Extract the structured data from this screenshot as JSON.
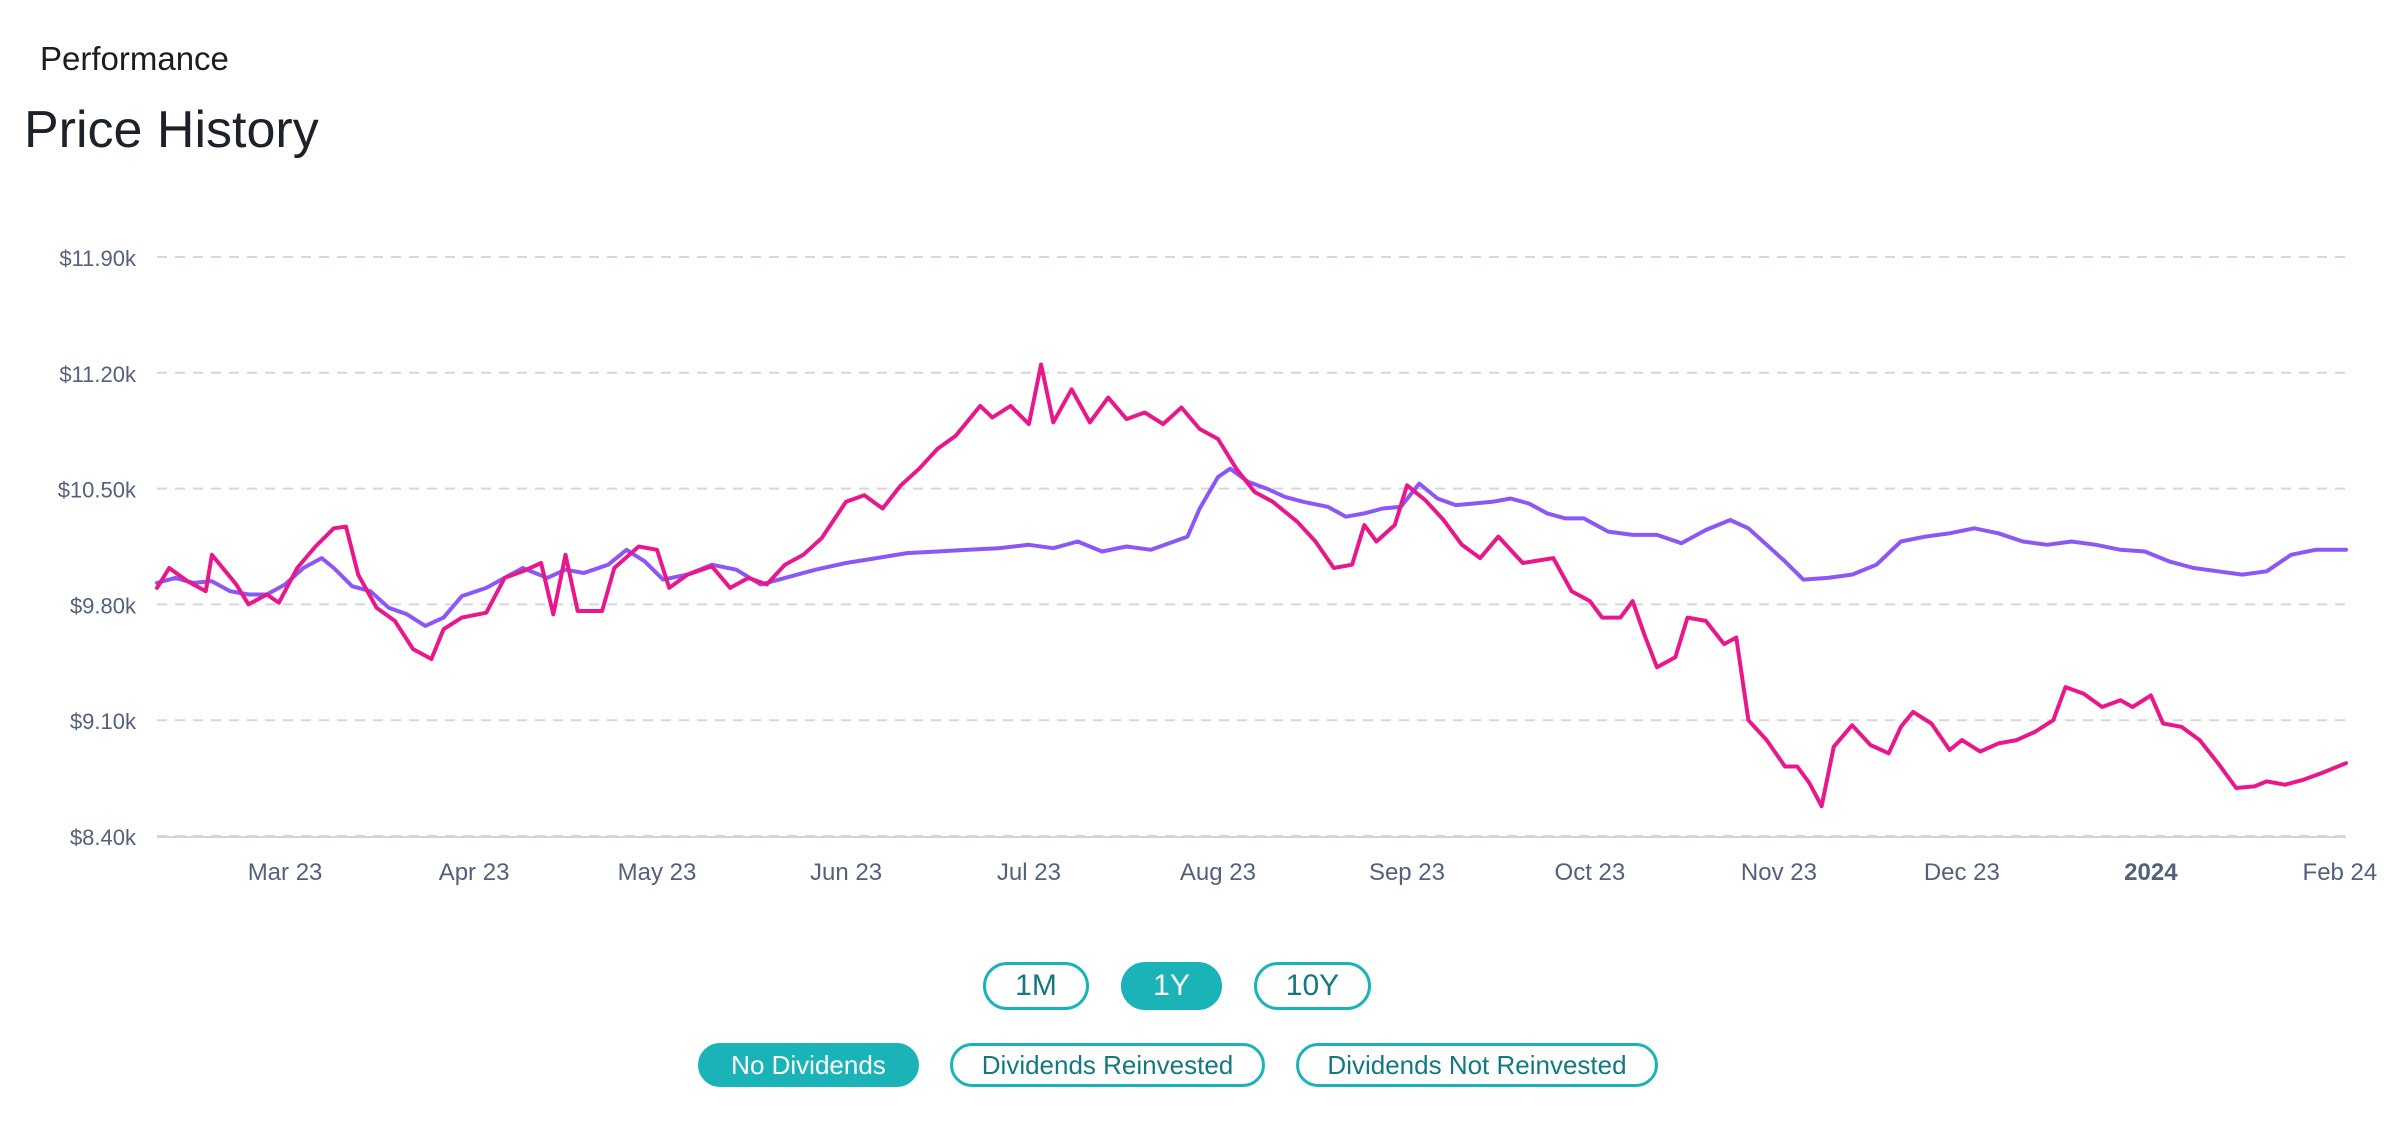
{
  "header": {
    "section_label": "Performance",
    "title": "Price History"
  },
  "range_buttons": [
    {
      "label": "1M",
      "active": false
    },
    {
      "label": "1Y",
      "active": true
    },
    {
      "label": "10Y",
      "active": false
    }
  ],
  "dividend_buttons": [
    {
      "label": "No Dividends",
      "active": true
    },
    {
      "label": "Dividends Reinvested",
      "active": false
    },
    {
      "label": "Dividends Not Reinvested",
      "active": false
    }
  ],
  "colors": {
    "accent": "#19b3b8",
    "series_magenta": "#e8188c",
    "series_purple": "#8b57f5",
    "grid": "#d3d8de",
    "axis_text": "#55607a"
  },
  "chart_data": {
    "type": "line",
    "title": "",
    "xlabel": "",
    "ylabel": "",
    "y_ticks": [
      "$8.40k",
      "$9.10k",
      "$9.80k",
      "$10.50k",
      "$11.20k",
      "$11.90k"
    ],
    "y_tick_values": [
      8400,
      9100,
      9800,
      10500,
      11200,
      11900
    ],
    "ylim": [
      8400,
      11900
    ],
    "x_ticks": [
      "Mar 23",
      "Apr 23",
      "May 23",
      "Jun 23",
      "Jul 23",
      "Aug 23",
      "Sep 23",
      "Oct 23",
      "Nov 23",
      "Dec 23",
      "2024",
      "Feb 24"
    ],
    "x_tick_dates": [
      "2023-03-01",
      "2023-04-01",
      "2023-05-01",
      "2023-06-01",
      "2023-07-01",
      "2023-08-01",
      "2023-09-01",
      "2023-10-01",
      "2023-11-01",
      "2023-12-01",
      "2024-01-01",
      "2024-02-01"
    ],
    "xlim": [
      "2023-02-08",
      "2024-02-02"
    ],
    "grid": "horizontal dashed",
    "series": [
      {
        "color": "#e8188c",
        "points": [
          [
            "2023-02-08",
            9900
          ],
          [
            "2023-02-10",
            10020
          ],
          [
            "2023-02-13",
            9940
          ],
          [
            "2023-02-16",
            9880
          ],
          [
            "2023-02-17",
            10100
          ],
          [
            "2023-02-21",
            9920
          ],
          [
            "2023-02-23",
            9800
          ],
          [
            "2023-02-26",
            9860
          ],
          [
            "2023-02-28",
            9810
          ],
          [
            "2023-03-03",
            10020
          ],
          [
            "2023-03-06",
            10150
          ],
          [
            "2023-03-09",
            10260
          ],
          [
            "2023-03-11",
            10270
          ],
          [
            "2023-03-13",
            9980
          ],
          [
            "2023-03-16",
            9780
          ],
          [
            "2023-03-19",
            9700
          ],
          [
            "2023-03-22",
            9530
          ],
          [
            "2023-03-25",
            9470
          ],
          [
            "2023-03-27",
            9650
          ],
          [
            "2023-03-30",
            9720
          ],
          [
            "2023-04-03",
            9750
          ],
          [
            "2023-04-06",
            9960
          ],
          [
            "2023-04-09",
            10000
          ],
          [
            "2023-04-12",
            10050
          ],
          [
            "2023-04-14",
            9740
          ],
          [
            "2023-04-16",
            10100
          ],
          [
            "2023-04-18",
            9760
          ],
          [
            "2023-04-22",
            9760
          ],
          [
            "2023-04-24",
            10020
          ],
          [
            "2023-04-28",
            10150
          ],
          [
            "2023-05-01",
            10130
          ],
          [
            "2023-05-03",
            9900
          ],
          [
            "2023-05-06",
            9980
          ],
          [
            "2023-05-10",
            10030
          ],
          [
            "2023-05-13",
            9900
          ],
          [
            "2023-05-16",
            9960
          ],
          [
            "2023-05-19",
            9920
          ],
          [
            "2023-05-22",
            10040
          ],
          [
            "2023-05-25",
            10100
          ],
          [
            "2023-05-28",
            10200
          ],
          [
            "2023-06-01",
            10420
          ],
          [
            "2023-06-04",
            10460
          ],
          [
            "2023-06-07",
            10380
          ],
          [
            "2023-06-10",
            10520
          ],
          [
            "2023-06-13",
            10620
          ],
          [
            "2023-06-16",
            10740
          ],
          [
            "2023-06-19",
            10820
          ],
          [
            "2023-06-23",
            11000
          ],
          [
            "2023-06-25",
            10930
          ],
          [
            "2023-06-28",
            11000
          ],
          [
            "2023-07-01",
            10890
          ],
          [
            "2023-07-03",
            11250
          ],
          [
            "2023-07-05",
            10900
          ],
          [
            "2023-07-08",
            11100
          ],
          [
            "2023-07-11",
            10900
          ],
          [
            "2023-07-14",
            11050
          ],
          [
            "2023-07-17",
            10920
          ],
          [
            "2023-07-20",
            10960
          ],
          [
            "2023-07-23",
            10890
          ],
          [
            "2023-07-26",
            10990
          ],
          [
            "2023-07-29",
            10860
          ],
          [
            "2023-08-01",
            10800
          ],
          [
            "2023-08-04",
            10620
          ],
          [
            "2023-08-07",
            10480
          ],
          [
            "2023-08-10",
            10420
          ],
          [
            "2023-08-14",
            10300
          ],
          [
            "2023-08-17",
            10180
          ],
          [
            "2023-08-20",
            10020
          ],
          [
            "2023-08-23",
            10040
          ],
          [
            "2023-08-25",
            10280
          ],
          [
            "2023-08-27",
            10180
          ],
          [
            "2023-08-30",
            10280
          ],
          [
            "2023-09-01",
            10520
          ],
          [
            "2023-09-04",
            10430
          ],
          [
            "2023-09-07",
            10310
          ],
          [
            "2023-09-10",
            10160
          ],
          [
            "2023-09-13",
            10080
          ],
          [
            "2023-09-16",
            10210
          ],
          [
            "2023-09-20",
            10050
          ],
          [
            "2023-09-25",
            10080
          ],
          [
            "2023-09-28",
            9880
          ],
          [
            "2023-10-01",
            9820
          ],
          [
            "2023-10-03",
            9720
          ],
          [
            "2023-10-06",
            9720
          ],
          [
            "2023-10-08",
            9820
          ],
          [
            "2023-10-10",
            9610
          ],
          [
            "2023-10-12",
            9420
          ],
          [
            "2023-10-15",
            9480
          ],
          [
            "2023-10-17",
            9720
          ],
          [
            "2023-10-20",
            9700
          ],
          [
            "2023-10-23",
            9560
          ],
          [
            "2023-10-25",
            9600
          ],
          [
            "2023-10-27",
            9100
          ],
          [
            "2023-10-30",
            8980
          ],
          [
            "2023-11-02",
            8820
          ],
          [
            "2023-11-04",
            8820
          ],
          [
            "2023-11-06",
            8720
          ],
          [
            "2023-11-08",
            8580
          ],
          [
            "2023-11-10",
            8940
          ],
          [
            "2023-11-13",
            9070
          ],
          [
            "2023-11-16",
            8950
          ],
          [
            "2023-11-19",
            8900
          ],
          [
            "2023-11-21",
            9060
          ],
          [
            "2023-11-23",
            9150
          ],
          [
            "2023-11-26",
            9080
          ],
          [
            "2023-11-29",
            8920
          ],
          [
            "2023-12-01",
            8980
          ],
          [
            "2023-12-04",
            8910
          ],
          [
            "2023-12-07",
            8960
          ],
          [
            "2023-12-10",
            8980
          ],
          [
            "2023-12-13",
            9030
          ],
          [
            "2023-12-16",
            9100
          ],
          [
            "2023-12-18",
            9300
          ],
          [
            "2023-12-21",
            9260
          ],
          [
            "2023-12-24",
            9180
          ],
          [
            "2023-12-27",
            9220
          ],
          [
            "2023-12-29",
            9180
          ],
          [
            "2024-01-01",
            9250
          ],
          [
            "2024-01-03",
            9080
          ],
          [
            "2024-01-06",
            9060
          ],
          [
            "2024-01-09",
            8980
          ],
          [
            "2024-01-12",
            8840
          ],
          [
            "2024-01-15",
            8690
          ],
          [
            "2024-01-18",
            8700
          ],
          [
            "2024-01-20",
            8730
          ],
          [
            "2024-01-23",
            8710
          ],
          [
            "2024-01-26",
            8740
          ],
          [
            "2024-01-29",
            8780
          ],
          [
            "2024-02-02",
            8840
          ]
        ]
      },
      {
        "color": "#8b57f5",
        "points": [
          [
            "2023-02-08",
            9930
          ],
          [
            "2023-02-11",
            9960
          ],
          [
            "2023-02-14",
            9930
          ],
          [
            "2023-02-17",
            9940
          ],
          [
            "2023-02-20",
            9880
          ],
          [
            "2023-02-23",
            9860
          ],
          [
            "2023-02-26",
            9860
          ],
          [
            "2023-03-01",
            9920
          ],
          [
            "2023-03-04",
            10020
          ],
          [
            "2023-03-07",
            10080
          ],
          [
            "2023-03-09",
            10020
          ],
          [
            "2023-03-12",
            9910
          ],
          [
            "2023-03-15",
            9880
          ],
          [
            "2023-03-18",
            9780
          ],
          [
            "2023-03-21",
            9740
          ],
          [
            "2023-03-24",
            9670
          ],
          [
            "2023-03-27",
            9720
          ],
          [
            "2023-03-30",
            9850
          ],
          [
            "2023-04-03",
            9900
          ],
          [
            "2023-04-06",
            9960
          ],
          [
            "2023-04-09",
            10020
          ],
          [
            "2023-04-13",
            9960
          ],
          [
            "2023-04-16",
            10010
          ],
          [
            "2023-04-19",
            9990
          ],
          [
            "2023-04-23",
            10040
          ],
          [
            "2023-04-26",
            10130
          ],
          [
            "2023-04-29",
            10060
          ],
          [
            "2023-05-02",
            9950
          ],
          [
            "2023-05-06",
            9980
          ],
          [
            "2023-05-10",
            10040
          ],
          [
            "2023-05-14",
            10010
          ],
          [
            "2023-05-18",
            9920
          ],
          [
            "2023-05-22",
            9960
          ],
          [
            "2023-05-27",
            10010
          ],
          [
            "2023-06-01",
            10050
          ],
          [
            "2023-06-06",
            10080
          ],
          [
            "2023-06-11",
            10110
          ],
          [
            "2023-06-16",
            10120
          ],
          [
            "2023-06-21",
            10130
          ],
          [
            "2023-06-26",
            10140
          ],
          [
            "2023-07-01",
            10160
          ],
          [
            "2023-07-05",
            10140
          ],
          [
            "2023-07-09",
            10180
          ],
          [
            "2023-07-13",
            10120
          ],
          [
            "2023-07-17",
            10150
          ],
          [
            "2023-07-21",
            10130
          ],
          [
            "2023-07-24",
            10170
          ],
          [
            "2023-07-27",
            10210
          ],
          [
            "2023-07-29",
            10380
          ],
          [
            "2023-08-01",
            10570
          ],
          [
            "2023-08-03",
            10620
          ],
          [
            "2023-08-06",
            10540
          ],
          [
            "2023-08-09",
            10500
          ],
          [
            "2023-08-12",
            10450
          ],
          [
            "2023-08-15",
            10420
          ],
          [
            "2023-08-19",
            10390
          ],
          [
            "2023-08-22",
            10330
          ],
          [
            "2023-08-25",
            10350
          ],
          [
            "2023-08-28",
            10380
          ],
          [
            "2023-08-31",
            10390
          ],
          [
            "2023-09-03",
            10530
          ],
          [
            "2023-09-06",
            10440
          ],
          [
            "2023-09-09",
            10400
          ],
          [
            "2023-09-12",
            10410
          ],
          [
            "2023-09-15",
            10420
          ],
          [
            "2023-09-18",
            10440
          ],
          [
            "2023-09-21",
            10410
          ],
          [
            "2023-09-24",
            10350
          ],
          [
            "2023-09-27",
            10320
          ],
          [
            "2023-09-30",
            10320
          ],
          [
            "2023-10-04",
            10240
          ],
          [
            "2023-10-08",
            10220
          ],
          [
            "2023-10-12",
            10220
          ],
          [
            "2023-10-16",
            10170
          ],
          [
            "2023-10-20",
            10250
          ],
          [
            "2023-10-24",
            10310
          ],
          [
            "2023-10-27",
            10260
          ],
          [
            "2023-10-30",
            10160
          ],
          [
            "2023-11-02",
            10060
          ],
          [
            "2023-11-05",
            9950
          ],
          [
            "2023-11-09",
            9960
          ],
          [
            "2023-11-13",
            9980
          ],
          [
            "2023-11-17",
            10040
          ],
          [
            "2023-11-21",
            10180
          ],
          [
            "2023-11-25",
            10210
          ],
          [
            "2023-11-29",
            10230
          ],
          [
            "2023-12-03",
            10260
          ],
          [
            "2023-12-07",
            10230
          ],
          [
            "2023-12-11",
            10180
          ],
          [
            "2023-12-15",
            10160
          ],
          [
            "2023-12-19",
            10180
          ],
          [
            "2023-12-23",
            10160
          ],
          [
            "2023-12-27",
            10130
          ],
          [
            "2023-12-31",
            10120
          ],
          [
            "2024-01-04",
            10060
          ],
          [
            "2024-01-08",
            10020
          ],
          [
            "2024-01-12",
            10000
          ],
          [
            "2024-01-16",
            9980
          ],
          [
            "2024-01-20",
            10000
          ],
          [
            "2024-01-24",
            10100
          ],
          [
            "2024-01-28",
            10130
          ],
          [
            "2024-02-02",
            10130
          ]
        ]
      }
    ]
  }
}
